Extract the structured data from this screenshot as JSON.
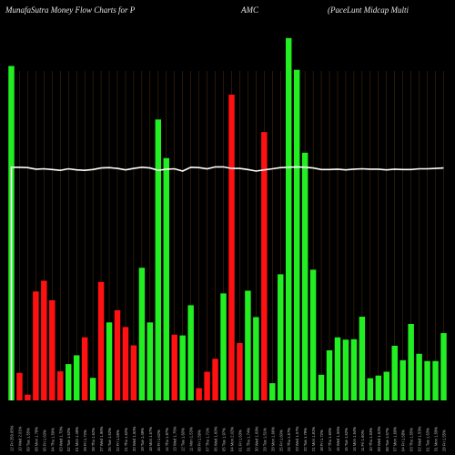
{
  "header": {
    "left": "MunafaSutra  Money Flow  Charts for P",
    "mid": "AMC",
    "right": "(PaceLunt Midcap Multi"
  },
  "colors": {
    "background": "#000000",
    "up": "#22ee22",
    "down": "#ff1111",
    "line": "#ffffff",
    "grid": "#9a5a10"
  },
  "chart_data": {
    "type": "bar",
    "title": "MunafaSutra  Money Flow  Charts for P AMC (PaceLunt Midcap Multi",
    "ylim": [
      0,
      100
    ],
    "categories": [
      "12 Fri 259.95%",
      "10 Wed 2.01%",
      "09 Tue 1.55%",
      "08 Mon 1.78%",
      "05 Fri 1.63%",
      "04 Thu 1.59%",
      "03 Wed 1.70%",
      "02 Tue 1.62%",
      "01 Mon 1.48%",
      "29 Fri 1.72%",
      "28 Thu 1.62%",
      "27 Wed 1.96%",
      "26 Tue 1.62%",
      "22 Fri 1.55%",
      "21 Thu 1.62%",
      "20 Wed 1.50%",
      "19 Tue 1.49%",
      "18 Mon 1.67%",
      "15 Fri 1.62%",
      "14 Thu 1.97%",
      "13 Wed 1.76%",
      "12 Tue 1.60%",
      "11 Mon 1.53%",
      "08 Fri 1.59%",
      "07 Thu 1.71%",
      "06 Wed 1.60%",
      "05 Tue 1.97%",
      "04 Mon 2.02%",
      "01 Fri 1.63%",
      "31 Thu 1.74%",
      "30 Wed 1.69%",
      "29 Tue 1.51%",
      "28 Mon 1.66%",
      "25 Fri 1.60%",
      "24 Thu 1.67%",
      "23 Wed 1.57%",
      "22 Tue 1.79%",
      "21 Mon 1.81%",
      "18 Fri 1.72%",
      "17 Thu 1.60%",
      "16 Wed 1.56%",
      "15 Tue 1.62%",
      "14 Mon 1.54%",
      "11 Fri 1.60%",
      "10 Thu 1.53%",
      "09 Wed 1.62%",
      "08 Tue 1.57%",
      "07 Mon 1.69%",
      "04 Fri 1.58%",
      "03 Thu 1.55%",
      "02 Wed 1.53%",
      "01 Tue 1.63%",
      "31 Mon 1.59%",
      "28 Fri 1.55%"
    ],
    "values": [
      87.5,
      7.2,
      1.5,
      28.5,
      31.3,
      26.2,
      7.6,
      9.5,
      11.8,
      16.5,
      5.9,
      31.0,
      20.4,
      23.6,
      19.2,
      14.4,
      34.7,
      20.4,
      73.5,
      63.4,
      17.2,
      17.0,
      24.9,
      3.2,
      7.5,
      10.9,
      28.0,
      80.0,
      15.0,
      28.7,
      21.8,
      70.2,
      4.5,
      33.0,
      94.8,
      86.5,
      64.8,
      34.2,
      6.7,
      13.1,
      16.5,
      15.9,
      16.0,
      21.9,
      5.8,
      6.5,
      7.5,
      14.3,
      10.5,
      20.0,
      12.2,
      10.3,
      10.3,
      17.6
    ],
    "up": [
      true,
      false,
      false,
      false,
      false,
      false,
      false,
      true,
      true,
      false,
      true,
      false,
      true,
      false,
      false,
      false,
      true,
      true,
      true,
      true,
      false,
      true,
      true,
      false,
      false,
      false,
      true,
      false,
      false,
      true,
      true,
      false,
      true,
      true,
      true,
      true,
      true,
      true,
      true,
      true,
      true,
      true,
      true,
      true,
      true,
      true,
      true,
      true,
      true,
      true,
      true,
      true,
      true,
      true
    ],
    "line": [
      61.0,
      61.0,
      60.9,
      60.5,
      60.6,
      60.4,
      60.2,
      60.6,
      60.3,
      60.2,
      60.4,
      60.8,
      60.9,
      60.7,
      60.3,
      60.7,
      61.0,
      60.8,
      60.2,
      60.5,
      60.6,
      60.0,
      61.0,
      60.9,
      60.6,
      61.1,
      61.1,
      60.7,
      60.7,
      60.4,
      60.0,
      60.3,
      60.6,
      60.9,
      61.0,
      61.1,
      61.0,
      60.8,
      60.4,
      60.4,
      60.5,
      60.3,
      60.5,
      60.6,
      60.5,
      60.5,
      60.3,
      60.5,
      60.4,
      60.4,
      60.6,
      60.6,
      60.7,
      60.8
    ]
  }
}
